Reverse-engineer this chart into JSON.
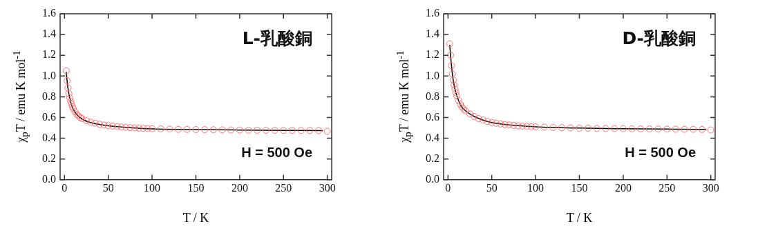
{
  "chart_data": [
    {
      "type": "scatter",
      "title": "L-乳酸銅",
      "xlabel": "T / K",
      "ylabel": "χ$_{p}$T / emu K mol$^{-1}$",
      "annotations": [
        "H = 500 Oe"
      ],
      "xlim": [
        -5,
        305
      ],
      "xticks": [
        0,
        50,
        100,
        150,
        200,
        250,
        300
      ],
      "ylim": [
        0,
        1.6
      ],
      "yticks": [
        {
          "value": 0,
          "label": "0.0"
        },
        {
          "value": 0.2,
          "label": "0.2"
        },
        {
          "value": 0.4,
          "label": "0.4"
        },
        {
          "value": 0.6,
          "label": "0.6"
        },
        {
          "value": 0.8,
          "label": "0.8"
        },
        {
          "value": 1,
          "label": "1.0"
        },
        {
          "value": 1.2,
          "label": "1.2"
        },
        {
          "value": 1.4,
          "label": "1.4"
        },
        {
          "value": 1.6,
          "label": "1.6"
        }
      ],
      "grid": false,
      "legend": false,
      "series": [
        {
          "marker": "circle",
          "color": "#ff7070",
          "x": [
            2,
            3,
            4,
            5,
            6,
            7,
            8,
            9,
            10,
            12,
            14,
            16,
            18,
            20,
            25,
            30,
            35,
            40,
            45,
            50,
            55,
            60,
            65,
            70,
            75,
            80,
            85,
            90,
            95,
            100,
            110,
            120,
            130,
            140,
            150,
            160,
            170,
            180,
            190,
            200,
            210,
            220,
            230,
            240,
            250,
            260,
            270,
            280,
            290,
            300
          ],
          "values": [
            1.05,
            0.955,
            0.885,
            0.83,
            0.79,
            0.755,
            0.73,
            0.705,
            0.685,
            0.655,
            0.63,
            0.615,
            0.6,
            0.59,
            0.57,
            0.555,
            0.545,
            0.535,
            0.528,
            0.522,
            0.517,
            0.512,
            0.508,
            0.505,
            0.502,
            0.5,
            0.498,
            0.496,
            0.494,
            0.492,
            0.49,
            0.488,
            0.486,
            0.485,
            0.484,
            0.483,
            0.482,
            0.481,
            0.48,
            0.479,
            0.478,
            0.478,
            0.477,
            0.477,
            0.476,
            0.476,
            0.475,
            0.475,
            0.474,
            0.467
          ]
        },
        {
          "type": "line",
          "marker": "none",
          "color": "#000000",
          "x": [
            2,
            3,
            4,
            5,
            7,
            10,
            15,
            20,
            30,
            40,
            50,
            70,
            100,
            150,
            200,
            250,
            295
          ],
          "values": [
            1.04,
            0.95,
            0.88,
            0.83,
            0.75,
            0.68,
            0.62,
            0.585,
            0.55,
            0.533,
            0.52,
            0.505,
            0.49,
            0.483,
            0.479,
            0.476,
            0.474
          ]
        }
      ]
    },
    {
      "type": "scatter",
      "title": "D-乳酸銅",
      "xlabel": "T / K",
      "ylabel": "χ$_{p}$T / emu K mol$^{-1}$",
      "annotations": [
        "H = 500 Oe"
      ],
      "xlim": [
        -5,
        305
      ],
      "xticks": [
        0,
        50,
        100,
        150,
        200,
        250,
        300
      ],
      "ylim": [
        0,
        1.6
      ],
      "yticks": [
        {
          "value": 0,
          "label": "0.0"
        },
        {
          "value": 0.2,
          "label": "0.2"
        },
        {
          "value": 0.4,
          "label": "0.4"
        },
        {
          "value": 0.6,
          "label": "0.6"
        },
        {
          "value": 0.8,
          "label": "0.8"
        },
        {
          "value": 1,
          "label": "1.0"
        },
        {
          "value": 1.2,
          "label": "1.2"
        },
        {
          "value": 1.4,
          "label": "1.4"
        },
        {
          "value": 1.6,
          "label": "1.6"
        }
      ],
      "grid": false,
      "legend": false,
      "series": [
        {
          "marker": "circle",
          "color": "#ff7070",
          "x": [
            2,
            3,
            4,
            5,
            6,
            7,
            8,
            9,
            10,
            12,
            14,
            16,
            18,
            20,
            25,
            30,
            35,
            40,
            45,
            50,
            55,
            60,
            65,
            70,
            75,
            80,
            85,
            90,
            95,
            100,
            110,
            120,
            130,
            140,
            150,
            160,
            170,
            180,
            190,
            200,
            210,
            220,
            230,
            240,
            250,
            260,
            270,
            280,
            290,
            300
          ],
          "values": [
            1.31,
            1.2,
            1.1,
            1.02,
            0.96,
            0.915,
            0.875,
            0.84,
            0.81,
            0.765,
            0.73,
            0.7,
            0.68,
            0.665,
            0.635,
            0.61,
            0.59,
            0.575,
            0.562,
            0.552,
            0.545,
            0.538,
            0.532,
            0.528,
            0.524,
            0.52,
            0.517,
            0.514,
            0.512,
            0.51,
            0.507,
            0.504,
            0.502,
            0.5,
            0.498,
            0.497,
            0.495,
            0.494,
            0.493,
            0.492,
            0.491,
            0.49,
            0.489,
            0.488,
            0.488,
            0.487,
            0.486,
            0.486,
            0.485,
            0.48
          ]
        },
        {
          "type": "line",
          "marker": "none",
          "color": "#000000",
          "x": [
            2,
            3,
            4,
            5,
            7,
            10,
            15,
            20,
            30,
            40,
            50,
            70,
            100,
            150,
            200,
            250,
            295
          ],
          "values": [
            1.3,
            1.19,
            1.1,
            1.02,
            0.91,
            0.81,
            0.71,
            0.665,
            0.61,
            0.575,
            0.552,
            0.528,
            0.51,
            0.498,
            0.492,
            0.488,
            0.485
          ]
        }
      ]
    }
  ]
}
